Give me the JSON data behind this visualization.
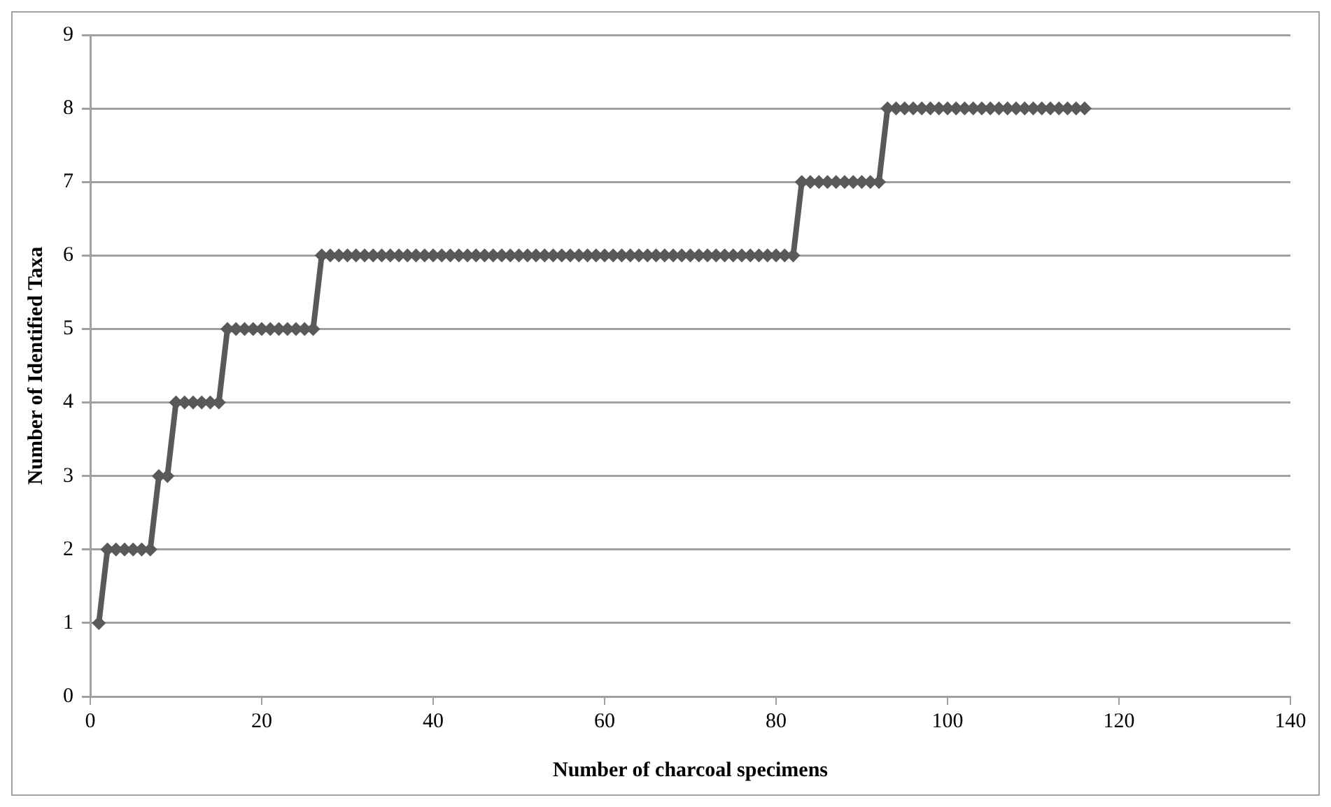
{
  "chart_data": {
    "type": "line",
    "xlabel": "Number of charcoal specimens",
    "ylabel": "Number of Identified Taxa",
    "x": [
      1,
      2,
      3,
      4,
      5,
      6,
      7,
      8,
      9,
      10,
      11,
      12,
      13,
      14,
      15,
      16,
      17,
      18,
      19,
      20,
      21,
      22,
      23,
      24,
      25,
      26,
      27,
      28,
      29,
      30,
      31,
      32,
      33,
      34,
      35,
      36,
      37,
      38,
      39,
      40,
      41,
      42,
      43,
      44,
      45,
      46,
      47,
      48,
      49,
      50,
      51,
      52,
      53,
      54,
      55,
      56,
      57,
      58,
      59,
      60,
      61,
      62,
      63,
      64,
      65,
      66,
      67,
      68,
      69,
      70,
      71,
      72,
      73,
      74,
      75,
      76,
      77,
      78,
      79,
      80,
      81,
      82,
      83,
      84,
      85,
      86,
      87,
      88,
      89,
      90,
      91,
      92,
      93,
      94,
      95,
      96,
      97,
      98,
      99,
      100,
      101,
      102,
      103,
      104,
      105,
      106,
      107,
      108,
      109,
      110,
      111,
      112,
      113,
      114,
      115,
      116
    ],
    "series": [
      {
        "color": "#595959",
        "values": [
          1,
          2,
          2,
          2,
          2,
          2,
          2,
          3,
          3,
          4,
          4,
          4,
          4,
          4,
          4,
          5,
          5,
          5,
          5,
          5,
          5,
          5,
          5,
          5,
          5,
          5,
          6,
          6,
          6,
          6,
          6,
          6,
          6,
          6,
          6,
          6,
          6,
          6,
          6,
          6,
          6,
          6,
          6,
          6,
          6,
          6,
          6,
          6,
          6,
          6,
          6,
          6,
          6,
          6,
          6,
          6,
          6,
          6,
          6,
          6,
          6,
          6,
          6,
          6,
          6,
          6,
          6,
          6,
          6,
          6,
          6,
          6,
          6,
          6,
          6,
          6,
          6,
          6,
          6,
          6,
          6,
          6,
          7,
          7,
          7,
          7,
          7,
          7,
          7,
          7,
          7,
          7,
          8,
          8,
          8,
          8,
          8,
          8,
          8,
          8,
          8,
          8,
          8,
          8,
          8,
          8,
          8,
          8,
          8,
          8,
          8,
          8,
          8,
          8,
          8,
          8
        ]
      }
    ],
    "xlim": [
      0,
      140
    ],
    "xticks": [
      0,
      20,
      40,
      60,
      80,
      100,
      120,
      140
    ],
    "ylim": [
      0,
      9
    ],
    "yticks": [
      0,
      1,
      2,
      3,
      4,
      5,
      6,
      7,
      8,
      9
    ],
    "grid": "y",
    "legend": false,
    "marker": "diamond",
    "line_style": "solid"
  }
}
